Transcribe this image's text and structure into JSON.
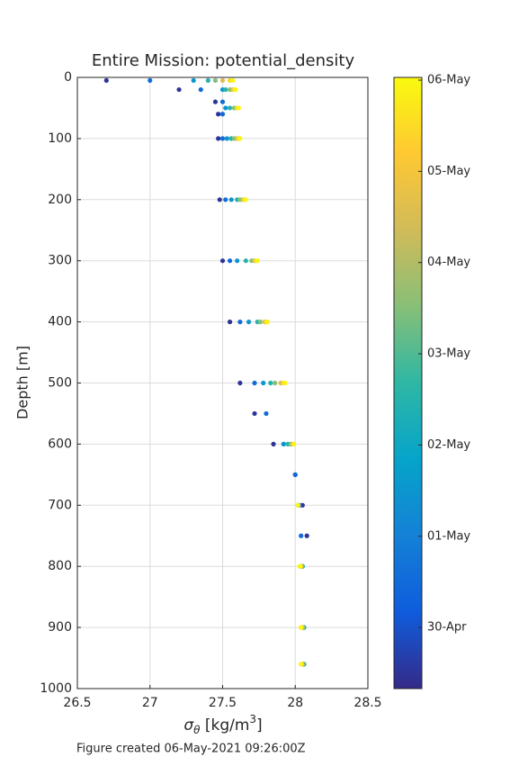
{
  "chart_data": {
    "type": "scatter",
    "title": "Entire Mission: potential_density",
    "xlabel": [
      "σ",
      "θ",
      " [kg/m",
      "3",
      "]"
    ],
    "ylabel": "Depth [m]",
    "footer": "Figure created 06-May-2021 09:26:00Z",
    "xlim": [
      26.5,
      28.5
    ],
    "xticks": [
      26.5,
      27,
      27.5,
      28,
      28.5
    ],
    "ylim": [
      0,
      1000
    ],
    "yticks": [
      0,
      100,
      200,
      300,
      400,
      500,
      600,
      700,
      800,
      900,
      1000
    ],
    "y_reversed": true,
    "grid": true,
    "colormap": [
      "#352a87",
      "#0f5cdd",
      "#1481d6",
      "#06a4ca",
      "#2eb7a4",
      "#87bf77",
      "#d1bb59",
      "#fec832",
      "#f9fb0e"
    ],
    "clim": [
      -0.67,
      6.03
    ],
    "cticks": [
      {
        "value": 0,
        "label": "30-Apr"
      },
      {
        "value": 1,
        "label": "01-May"
      },
      {
        "value": 2,
        "label": "02-May"
      },
      {
        "value": 3,
        "label": "03-May"
      },
      {
        "value": 4,
        "label": "04-May"
      },
      {
        "value": 5,
        "label": "05-May"
      },
      {
        "value": 6,
        "label": "06-May"
      }
    ],
    "profiles": [
      {
        "t": -0.5,
        "x": [
          26.7,
          27.2,
          27.45,
          27.47,
          27.47,
          27.48,
          27.5,
          27.55,
          27.62,
          27.72,
          27.85,
          28.0,
          28.05,
          28.08
        ],
        "y": [
          5,
          20,
          40,
          60,
          100,
          200,
          300,
          400,
          500,
          550,
          600,
          650,
          700,
          750
        ]
      },
      {
        "t": 0.5,
        "x": [
          27.0,
          27.35,
          27.5,
          27.5,
          27.5,
          27.52,
          27.55,
          27.62,
          27.72,
          27.8,
          27.92,
          28.0,
          28.03,
          28.04
        ],
        "y": [
          5,
          20,
          40,
          60,
          100,
          200,
          300,
          400,
          500,
          550,
          600,
          650,
          700,
          750
        ]
      },
      {
        "t": 1.5,
        "x": [
          27.3,
          27.5,
          27.52,
          27.53,
          27.56,
          27.6,
          27.68,
          27.78,
          27.92,
          28.02,
          28.05,
          28.06,
          28.06
        ],
        "y": [
          5,
          20,
          50,
          100,
          200,
          300,
          400,
          500,
          600,
          700,
          800,
          900,
          960
        ]
      },
      {
        "t": 2.5,
        "x": [
          27.4,
          27.52,
          27.55,
          27.56,
          27.6,
          27.66,
          27.74,
          27.83,
          27.95,
          28.02,
          28.05,
          28.06,
          28.06
        ],
        "y": [
          5,
          20,
          50,
          100,
          200,
          300,
          400,
          500,
          600,
          700,
          800,
          900,
          960
        ]
      },
      {
        "t": 3.5,
        "x": [
          27.45,
          27.55,
          27.58,
          27.58,
          27.62,
          27.7,
          27.76,
          27.86,
          27.97,
          28.02,
          28.04,
          28.05,
          28.05
        ],
        "y": [
          5,
          20,
          50,
          100,
          200,
          300,
          400,
          500,
          600,
          700,
          800,
          900,
          960
        ]
      },
      {
        "t": 4.5,
        "x": [
          27.5,
          27.57,
          27.6,
          27.6,
          27.64,
          27.72,
          27.79,
          27.9,
          27.98,
          28.02,
          28.04,
          28.05,
          28.05
        ],
        "y": [
          5,
          20,
          50,
          100,
          200,
          300,
          400,
          500,
          600,
          700,
          800,
          900,
          960
        ]
      },
      {
        "t": 5.5,
        "x": [
          27.55,
          27.58,
          27.6,
          27.61,
          27.65,
          27.73,
          27.8,
          27.92,
          27.99,
          28.02,
          28.04,
          28.04,
          28.04
        ],
        "y": [
          5,
          20,
          50,
          100,
          200,
          300,
          400,
          500,
          600,
          700,
          800,
          900,
          960
        ]
      },
      {
        "t": 5.95,
        "x": [
          27.57,
          27.59,
          27.61,
          27.62,
          27.66,
          27.74,
          27.81,
          27.93,
          27.99,
          28.02,
          28.03,
          28.04,
          28.04
        ],
        "y": [
          5,
          20,
          50,
          100,
          200,
          300,
          400,
          500,
          600,
          700,
          800,
          900,
          960
        ]
      }
    ]
  }
}
